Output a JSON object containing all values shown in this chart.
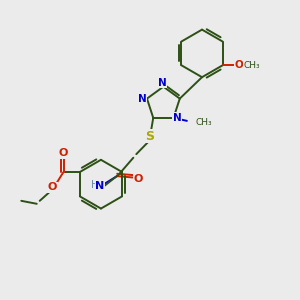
{
  "bg": "#ebebeb",
  "bc": "#2d5016",
  "Nc": "#0000cc",
  "Oc": "#cc2200",
  "Sc": "#aaaa00",
  "Hc": "#6688aa",
  "lw": 1.4,
  "figsize": [
    3.0,
    3.0
  ],
  "dpi": 100,
  "xlim": [
    0,
    10
  ],
  "ylim": [
    0,
    10
  ]
}
